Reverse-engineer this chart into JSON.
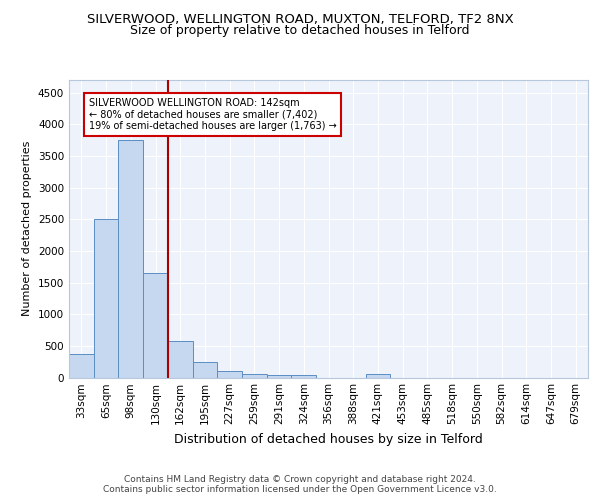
{
  "title1": "SILVERWOOD, WELLINGTON ROAD, MUXTON, TELFORD, TF2 8NX",
  "title2": "Size of property relative to detached houses in Telford",
  "xlabel": "Distribution of detached houses by size in Telford",
  "ylabel": "Number of detached properties",
  "categories": [
    "33sqm",
    "65sqm",
    "98sqm",
    "130sqm",
    "162sqm",
    "195sqm",
    "227sqm",
    "259sqm",
    "291sqm",
    "324sqm",
    "356sqm",
    "388sqm",
    "421sqm",
    "453sqm",
    "485sqm",
    "518sqm",
    "550sqm",
    "582sqm",
    "614sqm",
    "647sqm",
    "679sqm"
  ],
  "values": [
    375,
    2500,
    3750,
    1650,
    580,
    240,
    105,
    60,
    45,
    40,
    0,
    0,
    55,
    0,
    0,
    0,
    0,
    0,
    0,
    0,
    0
  ],
  "bar_color": "#c5d8f0",
  "bar_edge_color": "#5b8ec4",
  "vline_x": 3.5,
  "vline_color": "#aa0000",
  "annotation_text": "SILVERWOOD WELLINGTON ROAD: 142sqm\n← 80% of detached houses are smaller (7,402)\n19% of semi-detached houses are larger (1,763) →",
  "annotation_box_color": "white",
  "annotation_box_edge_color": "#cc0000",
  "ylim": [
    0,
    4700
  ],
  "yticks": [
    0,
    500,
    1000,
    1500,
    2000,
    2500,
    3000,
    3500,
    4000,
    4500
  ],
  "background_color": "#edf2fb",
  "grid_color": "white",
  "footer": "Contains HM Land Registry data © Crown copyright and database right 2024.\nContains public sector information licensed under the Open Government Licence v3.0.",
  "title1_fontsize": 9.5,
  "title2_fontsize": 9,
  "xlabel_fontsize": 9,
  "ylabel_fontsize": 8,
  "tick_fontsize": 7.5,
  "footer_fontsize": 6.5
}
